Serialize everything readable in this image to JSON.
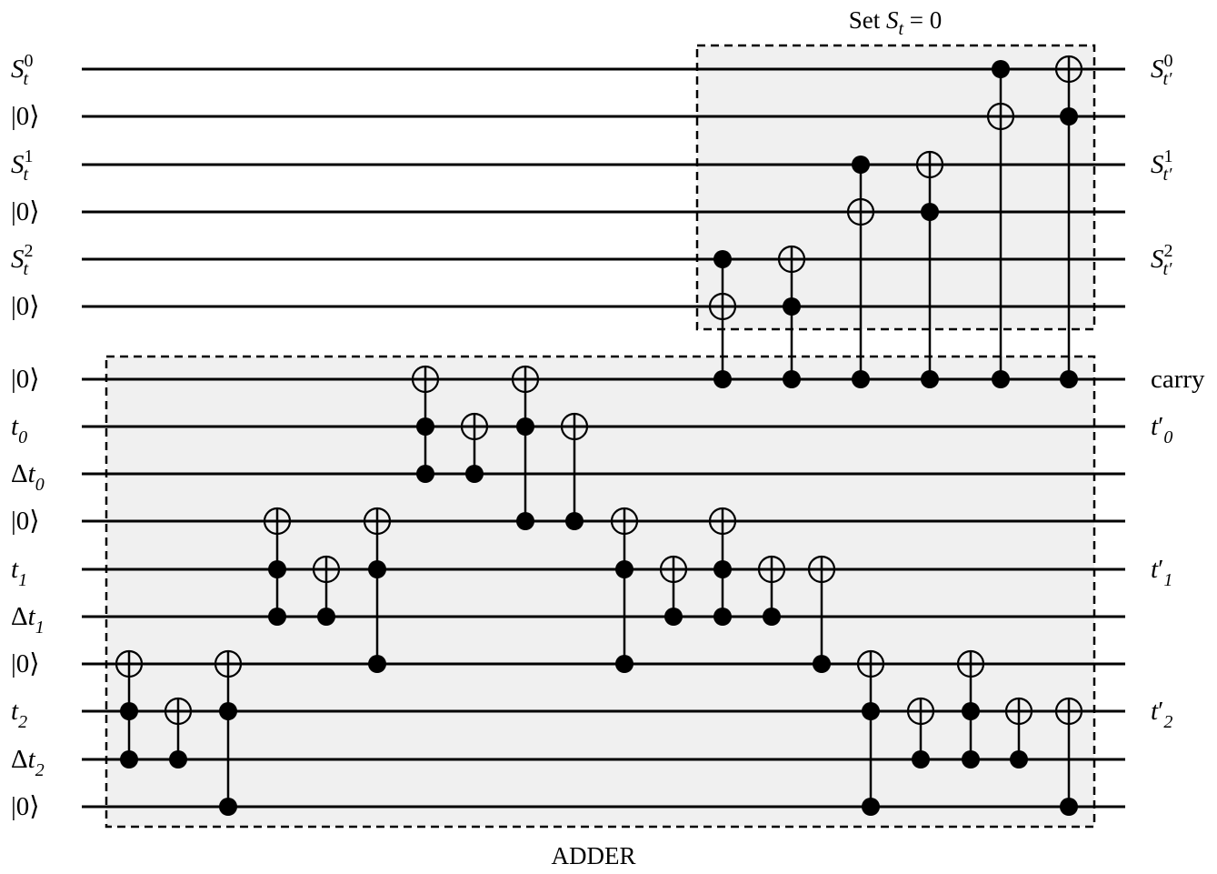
{
  "qubits": [
    {
      "id": "q0",
      "left": {
        "base": "S",
        "sub": "t",
        "sup": "0"
      },
      "right": {
        "base": "S",
        "sub": "t′",
        "sup": "0"
      }
    },
    {
      "id": "q1",
      "left": {
        "ket": "|0⟩"
      },
      "right": null
    },
    {
      "id": "q2",
      "left": {
        "base": "S",
        "sub": "t",
        "sup": "1"
      },
      "right": {
        "base": "S",
        "sub": "t′",
        "sup": "1"
      }
    },
    {
      "id": "q3",
      "left": {
        "ket": "|0⟩"
      },
      "right": null
    },
    {
      "id": "q4",
      "left": {
        "base": "S",
        "sub": "t",
        "sup": "2"
      },
      "right": {
        "base": "S",
        "sub": "t′",
        "sup": "2"
      }
    },
    {
      "id": "q5",
      "left": {
        "ket": "|0⟩"
      },
      "right": null
    },
    {
      "id": "q6",
      "left": {
        "ket": "|0⟩"
      },
      "right": {
        "text": "carry"
      }
    },
    {
      "id": "q7",
      "left": {
        "base": "t",
        "sub": "0"
      },
      "right": {
        "base": "t",
        "prime": true,
        "sub": "0"
      }
    },
    {
      "id": "q8",
      "left": {
        "pre": "Δ",
        "base": "t",
        "sub": "0"
      },
      "right": null
    },
    {
      "id": "q9",
      "left": {
        "ket": "|0⟩"
      },
      "right": null
    },
    {
      "id": "q10",
      "left": {
        "base": "t",
        "sub": "1"
      },
      "right": {
        "base": "t",
        "prime": true,
        "sub": "1"
      }
    },
    {
      "id": "q11",
      "left": {
        "pre": "Δ",
        "base": "t",
        "sub": "1"
      },
      "right": null
    },
    {
      "id": "q12",
      "left": {
        "ket": "|0⟩"
      },
      "right": null
    },
    {
      "id": "q13",
      "left": {
        "base": "t",
        "sub": "2"
      },
      "right": {
        "base": "t",
        "prime": true,
        "sub": "2"
      }
    },
    {
      "id": "q14",
      "left": {
        "pre": "Δ",
        "base": "t",
        "sub": "2"
      },
      "right": null
    },
    {
      "id": "q15",
      "left": {
        "ket": "|0⟩"
      },
      "right": null
    }
  ],
  "gates": [
    {
      "controls": [
        13,
        14
      ],
      "target": 12
    },
    {
      "controls": [
        14
      ],
      "target": 13
    },
    {
      "controls": [
        13,
        15
      ],
      "target": 12
    },
    {
      "controls": [
        10,
        11
      ],
      "target": 9
    },
    {
      "controls": [
        11
      ],
      "target": 10
    },
    {
      "controls": [
        10,
        12
      ],
      "target": 9
    },
    {
      "controls": [
        7,
        8
      ],
      "target": 6
    },
    {
      "controls": [
        8
      ],
      "target": 7
    },
    {
      "controls": [
        7,
        9
      ],
      "target": 6
    },
    {
      "controls": [
        9
      ],
      "target": 7
    },
    {
      "controls": [
        10,
        12
      ],
      "target": 9
    },
    {
      "controls": [
        11
      ],
      "target": 10
    },
    {
      "controls": [
        10,
        11
      ],
      "target": 9
    },
    {
      "controls": [
        11
      ],
      "target": 10
    },
    {
      "controls": [
        12
      ],
      "target": 10
    },
    {
      "controls": [
        13,
        15
      ],
      "target": 12
    },
    {
      "controls": [
        14
      ],
      "target": 13
    },
    {
      "controls": [
        13,
        14
      ],
      "target": 12
    },
    {
      "controls": [
        14
      ],
      "target": 13
    },
    {
      "controls": [
        15
      ],
      "target": 13
    },
    {
      "controls": [
        4,
        6
      ],
      "target": 5
    },
    {
      "controls": [
        5,
        6
      ],
      "target": 4
    },
    {
      "controls": [
        2,
        6
      ],
      "target": 3
    },
    {
      "controls": [
        3,
        6
      ],
      "target": 2
    },
    {
      "controls": [
        0,
        6
      ],
      "target": 1
    },
    {
      "controls": [
        1,
        6
      ],
      "target": 0
    }
  ],
  "boxes": {
    "set": {
      "caption": "Set ",
      "caption_var": "S",
      "caption_sub": "t",
      "caption_tail": " = 0"
    },
    "adder": {
      "caption": "ADDER"
    }
  }
}
